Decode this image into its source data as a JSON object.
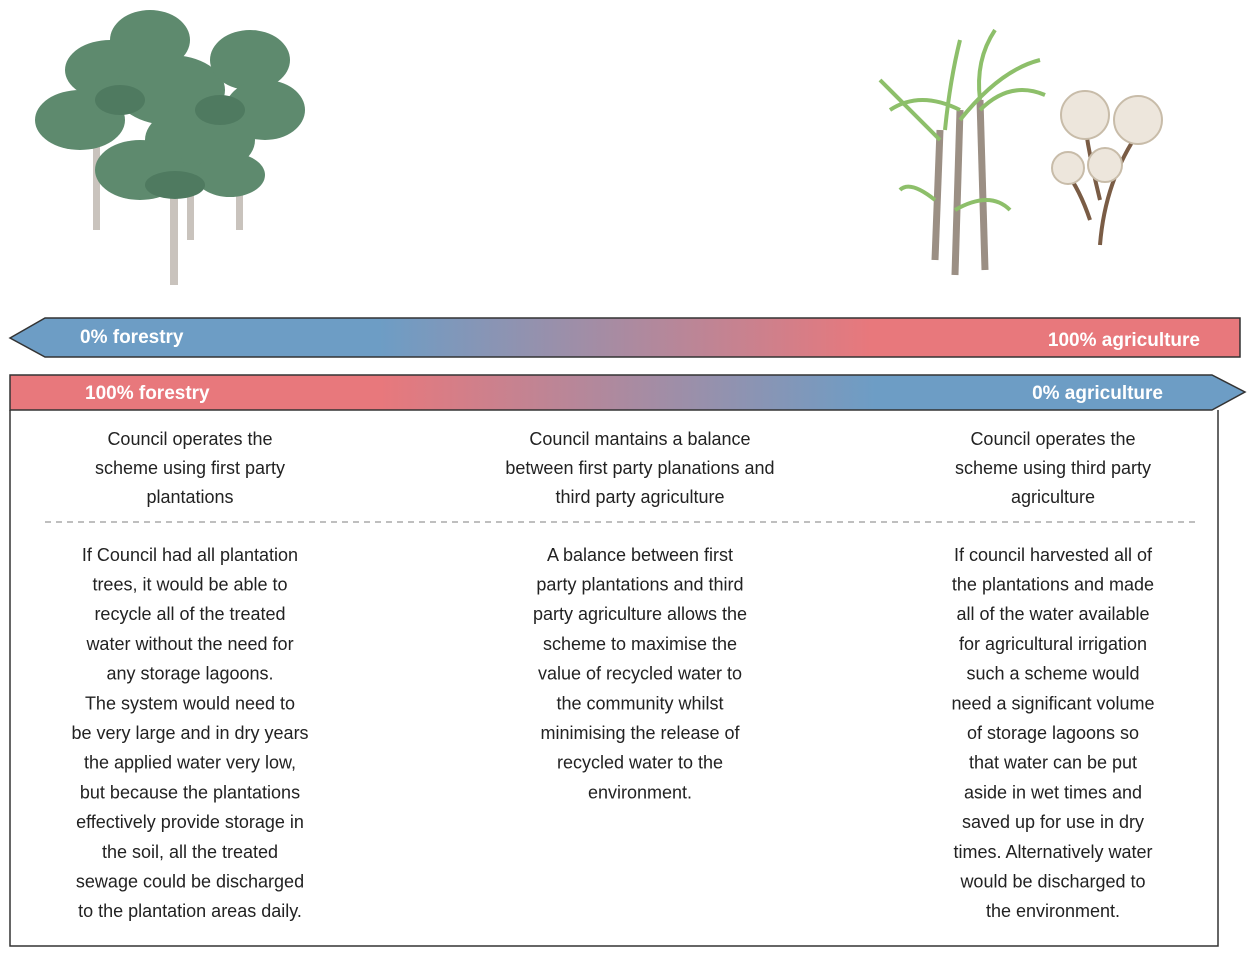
{
  "arrows": {
    "top": {
      "left_label": "0% forestry",
      "right_label": "100% agriculture"
    },
    "bottom": {
      "left_label": "100% forestry",
      "right_label": "0% agriculture"
    }
  },
  "columns": [
    {
      "heading": [
        "Council operates the",
        "scheme using first party",
        "plantations"
      ],
      "body": [
        "If Council had all plantation",
        "trees, it would be able to",
        "recycle all of the treated",
        "water without the need for",
        "any storage lagoons.",
        "The system would need to",
        "be very large and in dry years",
        "the applied water very low,",
        "but because the plantations",
        "effectively provide storage in",
        "the soil, all the treated",
        "sewage could be discharged",
        "to the plantation areas daily."
      ]
    },
    {
      "heading": [
        "Council mantains a balance",
        "between first party planations and",
        "third party agriculture"
      ],
      "body": [
        "A balance between first",
        "party plantations and third",
        "party agriculture allows the",
        "scheme to maximise the",
        "value of recycled water to",
        "the community whilst",
        "minimising the release of",
        "recycled water to the",
        "environment."
      ]
    },
    {
      "heading": [
        "Council operates the",
        "scheme using third party",
        "agriculture"
      ],
      "body": [
        "If council harvested all of",
        "the plantations and made",
        "all of the water available",
        "for agricultural irrigation",
        "such a scheme would",
        "need a significant volume",
        "of storage lagoons so",
        "that water can be put",
        "aside in wet times and",
        "saved up for use in dry",
        "times. Alternatively water",
        "would be discharged to",
        "the environment."
      ]
    }
  ]
}
